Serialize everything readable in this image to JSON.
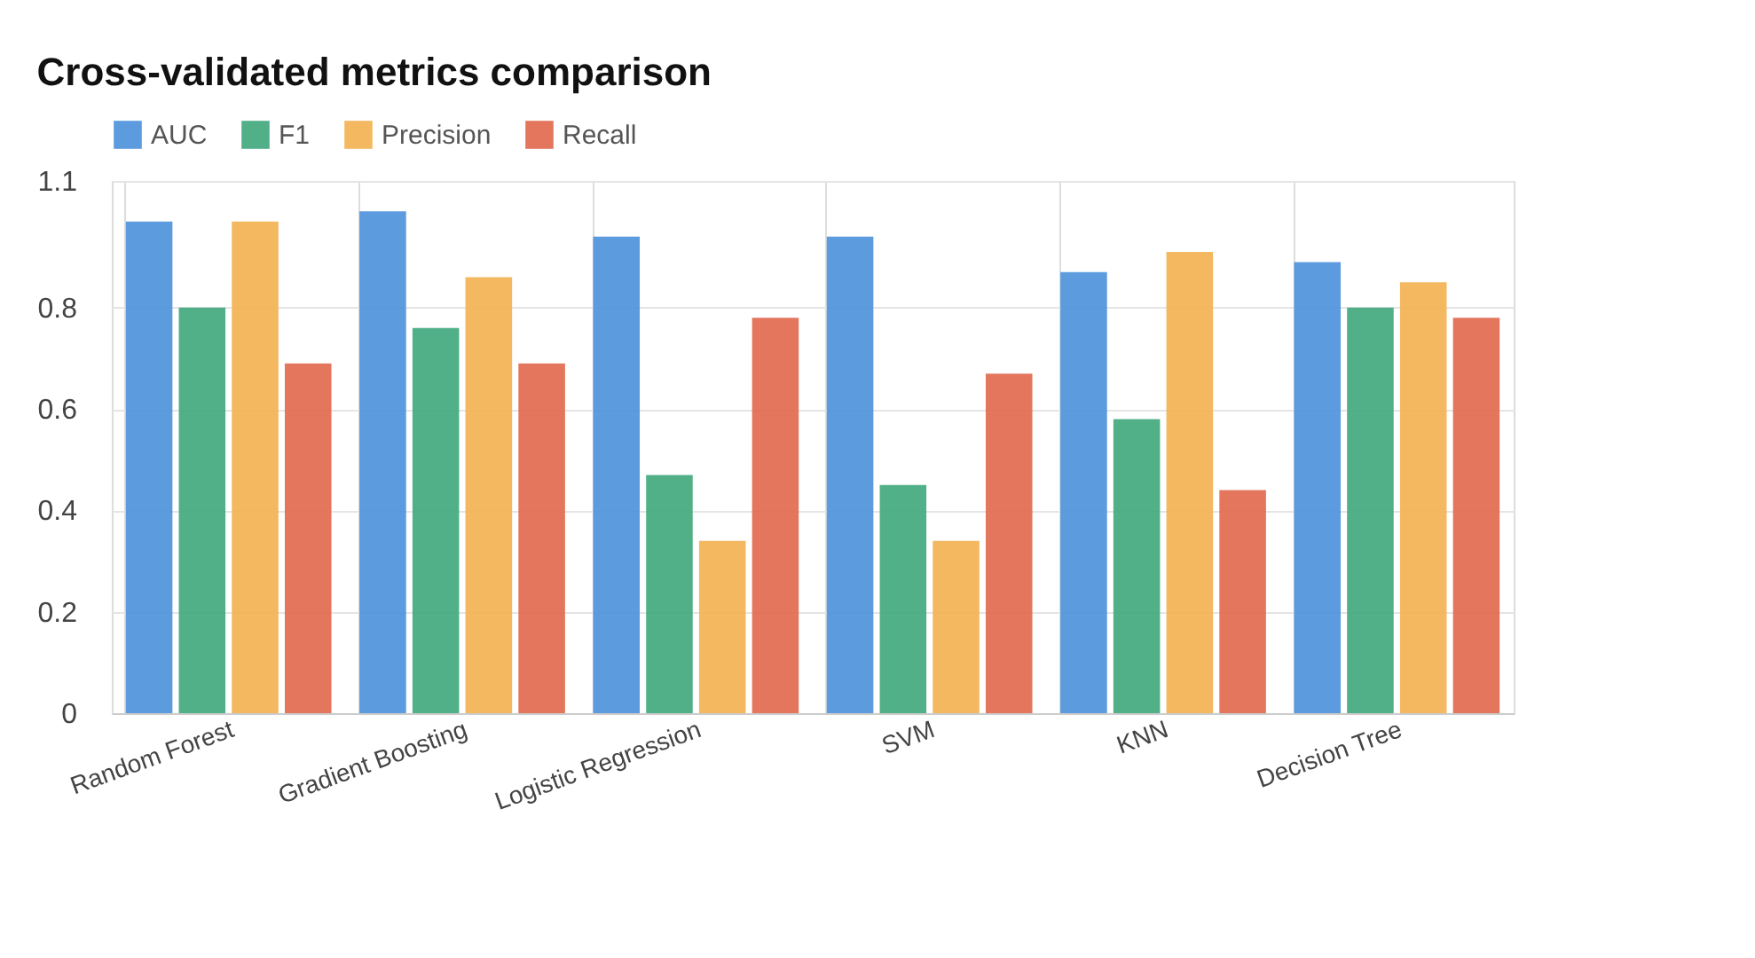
{
  "chart_data": {
    "type": "bar",
    "title": "Cross-validated metrics comparison",
    "categories": [
      "Random Forest",
      "Gradient Boosting",
      "Logistic Regression",
      "SVM",
      "KNN",
      "Decision Tree"
    ],
    "series": [
      {
        "name": "AUC",
        "color": "#4a90d9",
        "values": [
          0.97,
          0.99,
          0.94,
          0.94,
          0.87,
          0.89
        ]
      },
      {
        "name": "F1",
        "color": "#3fa77c",
        "values": [
          0.8,
          0.76,
          0.47,
          0.45,
          0.58,
          0.8
        ]
      },
      {
        "name": "Precision",
        "color": "#f2b04f",
        "values": [
          0.97,
          0.86,
          0.34,
          0.34,
          0.91,
          0.85
        ]
      },
      {
        "name": "Recall",
        "color": "#e0674b",
        "values": [
          0.69,
          0.69,
          0.78,
          0.67,
          0.44,
          0.78
        ]
      }
    ],
    "ylim": [
      0,
      1.05
    ],
    "yticks": [
      0,
      0.2,
      0.4,
      0.6,
      0.8,
      {
        "value": 1.05,
        "label": "1.1"
      }
    ],
    "grid": true,
    "legend": "top"
  }
}
